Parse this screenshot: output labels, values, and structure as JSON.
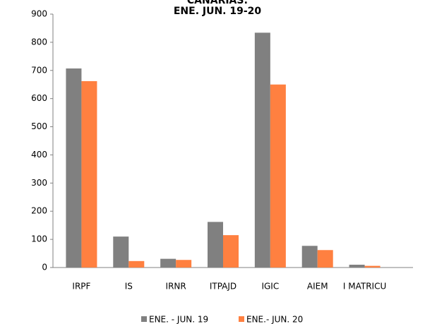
{
  "chart_data": {
    "type": "bar",
    "title": "CANARIAS:",
    "subtitle": "ENE. JUN. 19-20",
    "categories": [
      "IRPF",
      "IS",
      "IRNR",
      "ITPAJD",
      "IGIC",
      "AIEM",
      "I MATRICU"
    ],
    "series": [
      {
        "name": "ENE. - JUN. 19",
        "color": "#808080",
        "values": [
          707,
          110,
          31,
          162,
          834,
          77,
          10
        ]
      },
      {
        "name": "ENE.- JUN. 20",
        "color": "#ff8040",
        "values": [
          662,
          23,
          27,
          115,
          650,
          62,
          6
        ]
      }
    ],
    "ylim": [
      0,
      900
    ],
    "yticks": [
      0,
      100,
      200,
      300,
      400,
      500,
      600,
      700,
      800,
      900
    ],
    "grid": false
  }
}
